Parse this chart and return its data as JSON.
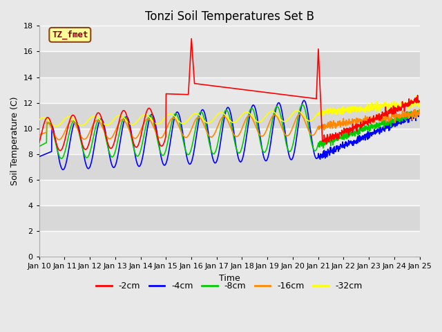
{
  "title": "Tonzi Soil Temperatures Set B",
  "xlabel": "Time",
  "ylabel": "Soil Temperature (C)",
  "legend_label": "TZ_fmet",
  "legend_entries": [
    "-2cm",
    "-4cm",
    "-8cm",
    "-16cm",
    "-32cm"
  ],
  "line_colors": [
    "#ff0000",
    "#0000ff",
    "#00cc00",
    "#ff8800",
    "#ffff00"
  ],
  "ylim": [
    0,
    18
  ],
  "yticks": [
    0,
    2,
    4,
    6,
    8,
    10,
    12,
    14,
    16,
    18
  ],
  "bg_light": "#e8e8e8",
  "bg_dark": "#d8d8d8",
  "grid_color": "#ffffff",
  "title_fontsize": 12,
  "axis_fontsize": 9,
  "tick_fontsize": 8,
  "legend_fontsize": 9,
  "line_width": 1.2,
  "xtick_labels": [
    "Jan 10",
    "Jan 11",
    "Jan 12",
    "Jan 13",
    "Jan 14",
    "Jan 15",
    "Jan 16",
    "Jan 17",
    "Jan 18",
    "Jan 19",
    "Jan 20",
    "Jan 21",
    "Jan 22",
    "Jan 23",
    "Jan 24",
    "Jan 25"
  ]
}
